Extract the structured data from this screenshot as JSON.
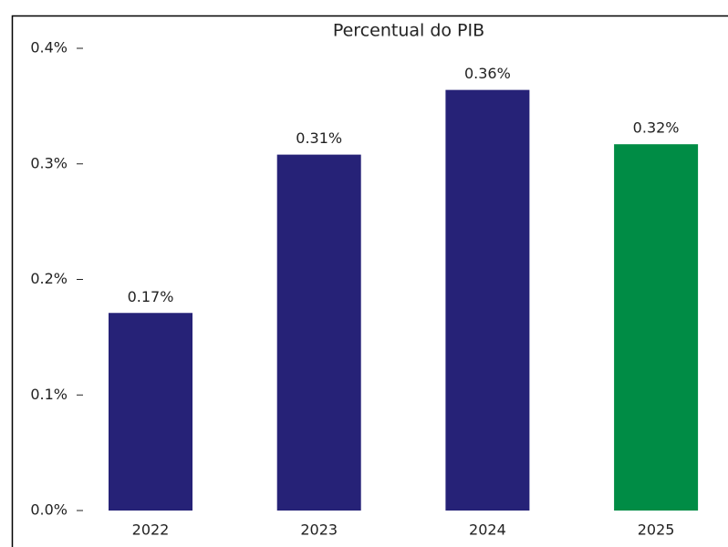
{
  "chart_data": {
    "type": "bar",
    "title": "Percentual do PIB",
    "categories": [
      "2022",
      "2023",
      "2024",
      "2025"
    ],
    "values": [
      0.171,
      0.308,
      0.364,
      0.317
    ],
    "value_labels": [
      "0.17%",
      "0.31%",
      "0.36%",
      "0.32%"
    ],
    "colors": [
      "#262277",
      "#262277",
      "#262277",
      "#008c45"
    ],
    "ylim": [
      0,
      0.4
    ],
    "yticks": [
      {
        "value": 0,
        "label": "0.0%"
      },
      {
        "value": 0.1,
        "label": "0.1%"
      },
      {
        "value": 0.2,
        "label": "0.2%"
      },
      {
        "value": 0.3,
        "label": "0.3%"
      },
      {
        "value": 0.4,
        "label": "0.4%"
      }
    ]
  }
}
